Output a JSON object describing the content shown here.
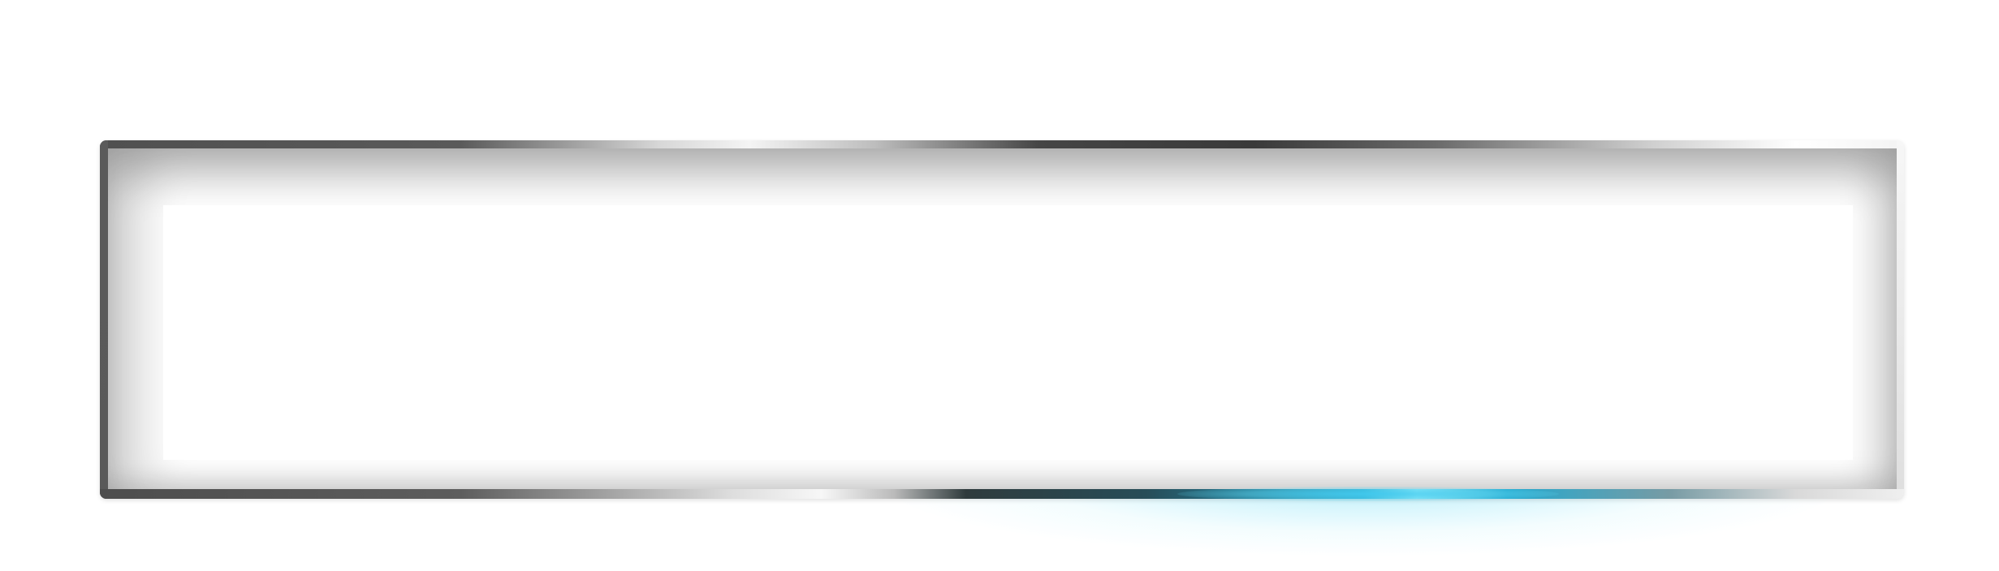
{
  "window": {
    "title": ""
  },
  "panel": {
    "content": ""
  },
  "theme": {
    "background": "#ffffff",
    "frame_dark": "#4f4f4f",
    "frame_light": "#f4f4f4",
    "accent_glow": "#67d8f4"
  }
}
